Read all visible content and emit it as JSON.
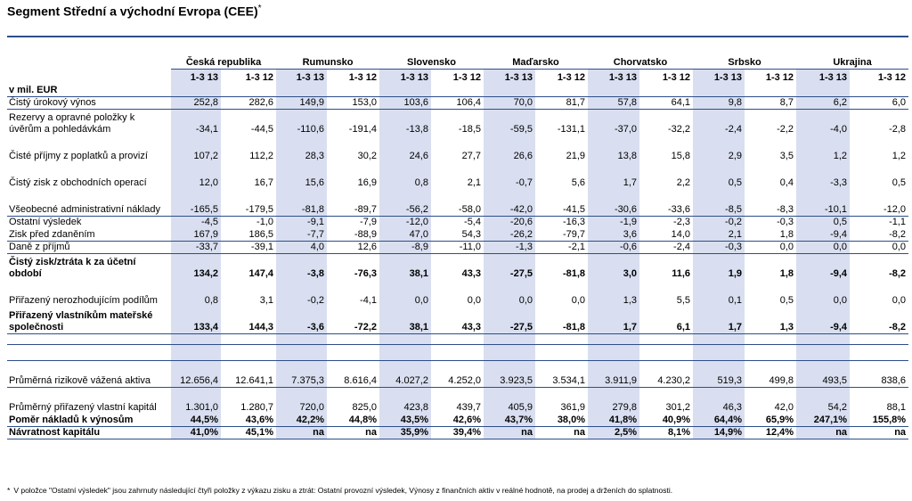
{
  "title": "Segment Střední a východní Evropa (CEE)",
  "title_mark": "*",
  "unit_label": "v mil. EUR",
  "countries": [
    "Česká republika",
    "Rumunsko",
    "Slovensko",
    "Maďarsko",
    "Chorvatsko",
    "Srbsko",
    "Ukrajina"
  ],
  "periods": [
    "1-3 13",
    "1-3 12"
  ],
  "rows": [
    {
      "label": "Čistý úrokový výnos",
      "values": [
        "252,8",
        "282,6",
        "149,9",
        "153,0",
        "103,6",
        "106,4",
        "70,0",
        "81,7",
        "57,8",
        "64,1",
        "9,8",
        "8,7",
        "6,2",
        "6,0"
      ]
    },
    {
      "label": "Rezervy a opravné položky k úvěrům a pohledávkám",
      "values": [
        "-34,1",
        "-44,5",
        "-110,6",
        "-191,4",
        "-13,8",
        "-18,5",
        "-59,5",
        "-131,1",
        "-37,0",
        "-32,2",
        "-2,4",
        "-2,2",
        "-4,0",
        "-2,8"
      ]
    },
    {
      "label": "Čisté příjmy z poplatků a provizí",
      "values": [
        "107,2",
        "112,2",
        "28,3",
        "30,2",
        "24,6",
        "27,7",
        "26,6",
        "21,9",
        "13,8",
        "15,8",
        "2,9",
        "3,5",
        "1,2",
        "1,2"
      ]
    },
    {
      "label": "Čistý zisk z obchodních operací",
      "values": [
        "12,0",
        "16,7",
        "15,6",
        "16,9",
        "0,8",
        "2,1",
        "-0,7",
        "5,6",
        "1,7",
        "2,2",
        "0,5",
        "0,4",
        "-3,3",
        "0,5"
      ]
    },
    {
      "label": "Všeobecné administrativní náklady",
      "values": [
        "-165,5",
        "-179,5",
        "-81,8",
        "-89,7",
        "-56,2",
        "-58,0",
        "-42,0",
        "-41,5",
        "-30,6",
        "-33,6",
        "-8,5",
        "-8,3",
        "-10,1",
        "-12,0"
      ]
    },
    {
      "label": "Ostatní výsledek",
      "values": [
        "-4,5",
        "-1,0",
        "-9,1",
        "-7,9",
        "-12,0",
        "-5,4",
        "-20,6",
        "-16,3",
        "-1,9",
        "-2,3",
        "-0,2",
        "-0,3",
        "0,5",
        "-1,1"
      ]
    },
    {
      "label": "Zisk před zdaněním",
      "values": [
        "167,9",
        "186,5",
        "-7,7",
        "-88,9",
        "47,0",
        "54,3",
        "-26,2",
        "-79,7",
        "3,6",
        "14,0",
        "2,1",
        "1,8",
        "-9,4",
        "-8,2"
      ]
    },
    {
      "label": "Daně z příjmů",
      "values": [
        "-33,7",
        "-39,1",
        "4,0",
        "12,6",
        "-8,9",
        "-11,0",
        "-1,3",
        "-2,1",
        "-0,6",
        "-2,4",
        "-0,3",
        "0,0",
        "0,0",
        "0,0"
      ]
    },
    {
      "label": "Čistý zisk/ztráta k za účetní období",
      "values": [
        "134,2",
        "147,4",
        "-3,8",
        "-76,3",
        "38,1",
        "43,3",
        "-27,5",
        "-81,8",
        "3,0",
        "11,6",
        "1,9",
        "1,8",
        "-9,4",
        "-8,2"
      ]
    },
    {
      "label": "Přiřazený nerozhodujícím podílům",
      "values": [
        "0,8",
        "3,1",
        "-0,2",
        "-4,1",
        "0,0",
        "0,0",
        "0,0",
        "0,0",
        "1,3",
        "5,5",
        "0,1",
        "0,5",
        "0,0",
        "0,0"
      ]
    },
    {
      "label": "Přiřazený vlastníkům mateřské společnosti",
      "values": [
        "133,4",
        "144,3",
        "-3,6",
        "-72,2",
        "38,1",
        "43,3",
        "-27,5",
        "-81,8",
        "1,7",
        "6,1",
        "1,7",
        "1,3",
        "-9,4",
        "-8,2"
      ]
    },
    {
      "label": "Průměrná rizikově vážená aktiva",
      "values": [
        "12.656,4",
        "12.641,1",
        "7.375,3",
        "8.616,4",
        "4.027,2",
        "4.252,0",
        "3.923,5",
        "3.534,1",
        "3.911,9",
        "4.230,2",
        "519,3",
        "499,8",
        "493,5",
        "838,6"
      ]
    },
    {
      "label": "Průměrný přiřazený vlastní kapitál",
      "values": [
        "1.301,0",
        "1.280,7",
        "720,0",
        "825,0",
        "423,8",
        "439,7",
        "405,9",
        "361,9",
        "279,8",
        "301,2",
        "46,3",
        "42,0",
        "54,2",
        "88,1"
      ]
    },
    {
      "label": "Poměr nákladů k výnosům",
      "values": [
        "44,5%",
        "43,6%",
        "42,2%",
        "44,8%",
        "43,5%",
        "42,6%",
        "43,7%",
        "38,0%",
        "41,8%",
        "40,9%",
        "64,4%",
        "65,9%",
        "247,1%",
        "155,8%"
      ]
    },
    {
      "label": "Návratnost kapitálu",
      "values": [
        "41,0%",
        "45,1%",
        "na",
        "na",
        "35,9%",
        "39,4%",
        "na",
        "na",
        "2,5%",
        "8,1%",
        "14,9%",
        "12,4%",
        "na",
        "na"
      ]
    }
  ],
  "footnote": "V položce \"Ostatní výsledek\" jsou zahrnuty následující čtyři položky z výkazu zisku a ztrát: Ostatní provozní výsledek, Výnosy z finančních aktiv v reálné hodnotě, na prodej a drženích do splatnosti.",
  "footnote_mark": "*",
  "colors": {
    "rule": "#2d4e8a",
    "shade": "#d9dff0"
  }
}
